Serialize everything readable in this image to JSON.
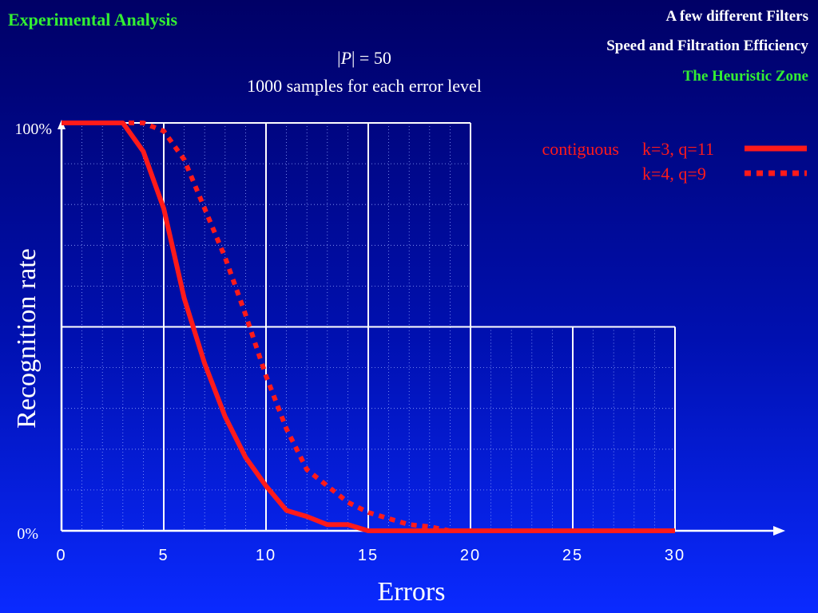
{
  "header": {
    "title": "Experimental Analysis",
    "nav": [
      "A few different Filters",
      "Speed and Filtration Efficiency",
      "The Heuristic Zone"
    ],
    "subtitle_line1_prefix": "|",
    "subtitle_line1_italic": "P",
    "subtitle_line1_suffix": "| = 50",
    "subtitle_line2": "1000 samples for each error level"
  },
  "colors": {
    "title": "#33ee33",
    "series": "#ff1a1a",
    "axis": "#ffffff"
  },
  "chart_data": {
    "type": "line",
    "xlabel": "Errors",
    "ylabel": "Recognition rate",
    "xlim": [
      0,
      30
    ],
    "ylim": [
      0,
      100
    ],
    "x_ticks": [
      "0",
      "5",
      "10",
      "15",
      "20",
      "25",
      "30"
    ],
    "y_tick_labels": [
      "100%",
      "0%"
    ],
    "legend_group_label": "contiguous",
    "grid": true,
    "legend_position": "top-right",
    "series": [
      {
        "name": "k=3, q=11",
        "style": "solid",
        "x": [
          0,
          1,
          2,
          3,
          4,
          5,
          6,
          7,
          8,
          9,
          10,
          11,
          12,
          13,
          14,
          15,
          16,
          17,
          18,
          19,
          20,
          25,
          30
        ],
        "y": [
          100,
          100,
          100,
          100,
          93,
          79,
          57,
          41,
          28,
          18,
          11,
          5,
          3.5,
          1.5,
          1.5,
          0,
          0,
          0,
          0,
          0,
          0,
          0,
          0
        ]
      },
      {
        "name": "k=4, q=9",
        "style": "dotted",
        "x": [
          0,
          1,
          2,
          3,
          4,
          5,
          6,
          7,
          8,
          9,
          10,
          11,
          12,
          13,
          14,
          15,
          16,
          17,
          18,
          19,
          20,
          25,
          30
        ],
        "y": [
          100,
          100,
          100,
          100,
          100,
          98,
          91,
          79,
          67,
          53,
          38,
          25,
          15,
          11,
          7,
          4.5,
          3,
          1.5,
          1,
          0,
          0,
          0,
          0
        ]
      }
    ]
  }
}
